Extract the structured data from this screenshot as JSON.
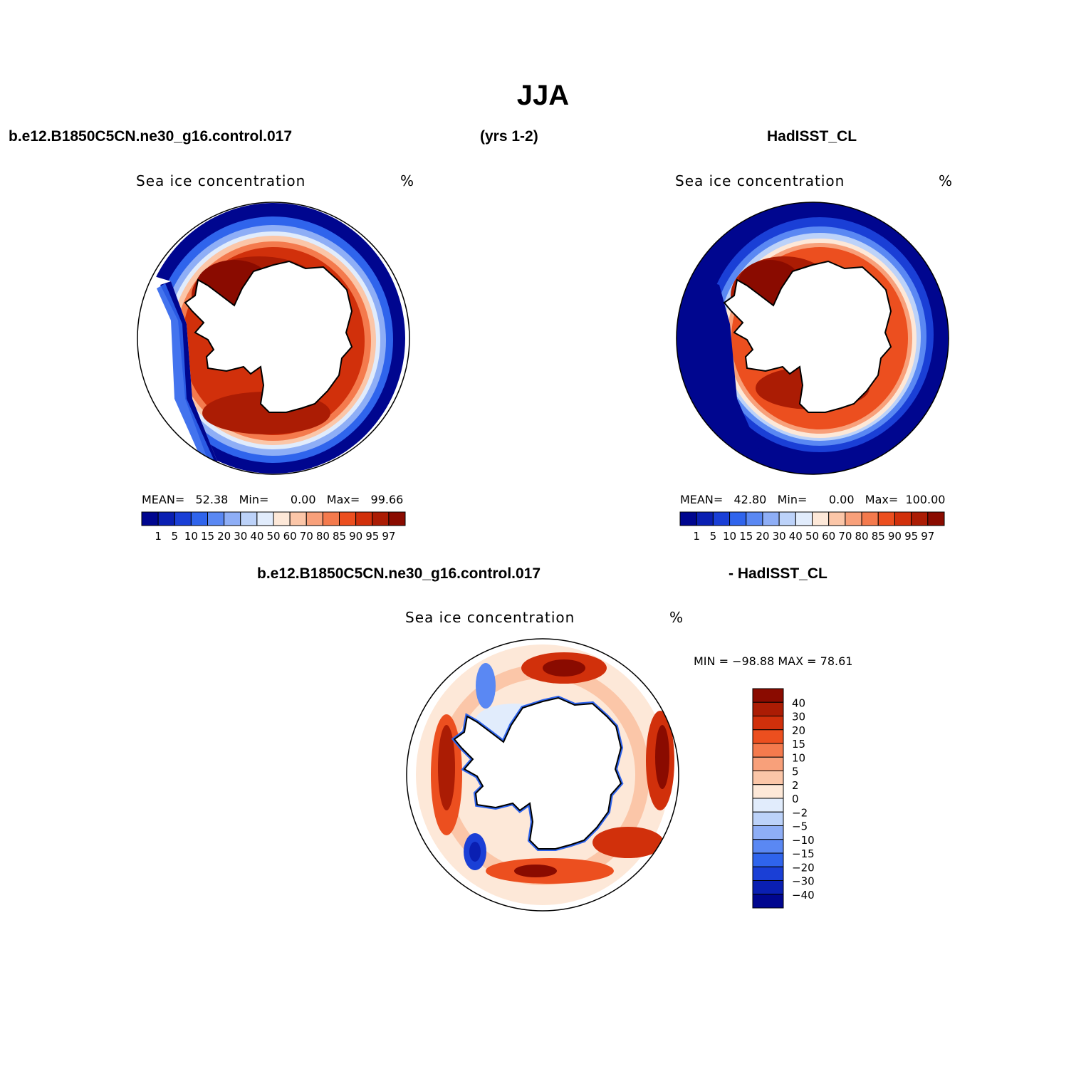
{
  "figure": {
    "title": "JJA",
    "header": {
      "left": "b.e12.B1850C5CN.ne30_g16.control.017",
      "center": "(yrs 1-2)",
      "right": "HadISST_CL"
    },
    "diff_header": {
      "left": "b.e12.B1850C5CN.ne30_g16.control.017",
      "right": "- HadISST_CL"
    }
  },
  "panels": {
    "model": {
      "label": "Sea ice concentration",
      "units": "%",
      "stats": {
        "mean_label": "MEAN=",
        "mean": "52.38",
        "min_label": "Min=",
        "min": "0.00",
        "max_label": "Max=",
        "max": "99.66"
      }
    },
    "obs": {
      "label": "Sea ice concentration",
      "units": "%",
      "stats": {
        "mean_label": "MEAN=",
        "mean": "42.80",
        "min_label": "Min=",
        "min": "0.00",
        "max_label": "Max=",
        "max": "100.00"
      }
    },
    "diff": {
      "label": "Sea ice concentration",
      "units": "%",
      "minmax": "MIN = −98.88  MAX =   78.61"
    }
  },
  "colorbars": {
    "concentration": {
      "levels": [
        "1",
        "5",
        "10",
        "15",
        "20",
        "30",
        "40",
        "50",
        "60",
        "70",
        "80",
        "85",
        "90",
        "95",
        "97"
      ],
      "colors": [
        "#00068f",
        "#0a1fb2",
        "#1a3fd6",
        "#2f64ec",
        "#5a88f3",
        "#8eaef6",
        "#bcd2f9",
        "#e1ecfc",
        "#fde8d8",
        "#fbc6a8",
        "#f8a07a",
        "#f47a4d",
        "#ec4f1f",
        "#d1300b",
        "#ab1c04",
        "#8a0b00"
      ]
    },
    "difference": {
      "levels": [
        "40",
        "30",
        "20",
        "15",
        "10",
        "5",
        "2",
        "0",
        "−2",
        "−5",
        "−10",
        "−15",
        "−20",
        "−30",
        "−40"
      ],
      "colors": [
        "#8a0b00",
        "#ab1c04",
        "#d1300b",
        "#ec4f1f",
        "#f47a4d",
        "#f8a07a",
        "#fbc6a8",
        "#fde8d8",
        "#e1ecfc",
        "#bcd2f9",
        "#8eaef6",
        "#5a88f3",
        "#2f64ec",
        "#1a3fd6",
        "#0a1fb2",
        "#00068f"
      ]
    }
  }
}
